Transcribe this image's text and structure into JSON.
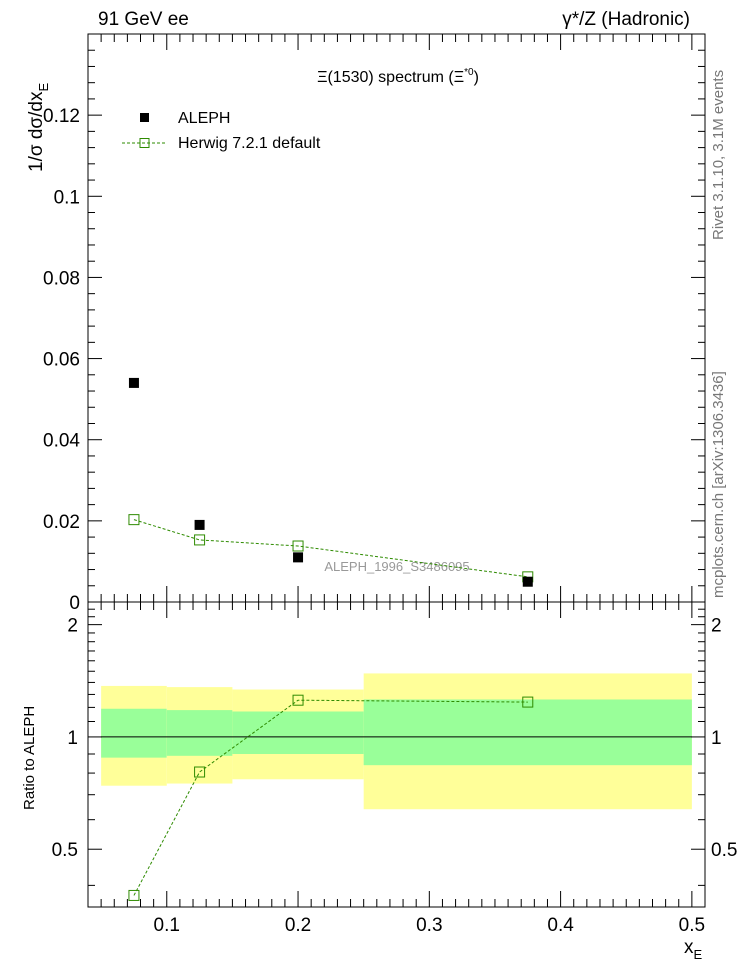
{
  "header": {
    "left": "91 GeV ee",
    "right": "γ*/Z (Hadronic)"
  },
  "side_labels": {
    "rivet": "Rivet 3.1.10,  3.1M events",
    "mcplots": "mcplots.cern.ch [arXiv:1306.3436]"
  },
  "colors": {
    "data_marker": "#000000",
    "mc_line": "#2e8b00",
    "band_inner": "#99ff99",
    "band_outer": "#ffff99"
  },
  "chart_data": [
    {
      "id": "main",
      "type": "scatter",
      "title": "Ξ(1530) spectrum (Ξ*0)",
      "title_main": "Ξ(1530) spectrum (Ξ",
      "title_sup": "*0",
      "title_end": ")",
      "ylabel": "1/σ dσ/dx",
      "ylabel_sub": "E",
      "xlim": [
        0.04,
        0.51
      ],
      "ylim": [
        0,
        0.14
      ],
      "yticks": [
        0,
        0.02,
        0.04,
        0.06,
        0.08,
        0.1,
        0.12
      ],
      "ytick_labels": [
        "0",
        "0.02",
        "0.04",
        "0.06",
        "0.08",
        "0.1",
        "0.12"
      ],
      "watermark": "ALEPH_1996_S3486095",
      "legend": [
        {
          "label": "ALEPH",
          "kind": "data"
        },
        {
          "label": "Herwig 7.2.1 default",
          "kind": "mc"
        }
      ],
      "series": [
        {
          "name": "ALEPH",
          "x": [
            0.075,
            0.125,
            0.2,
            0.375
          ],
          "y": [
            0.054,
            0.019,
            0.011,
            0.005
          ]
        },
        {
          "name": "Herwig 7.2.1 default",
          "x": [
            0.075,
            0.125,
            0.2,
            0.375
          ],
          "y": [
            0.0203,
            0.0153,
            0.0138,
            0.0062
          ]
        }
      ]
    },
    {
      "id": "ratio",
      "type": "scatter",
      "ylabel": "Ratio to ALEPH",
      "xlabel": "x",
      "xlabel_sub": "E",
      "xlim": [
        0.04,
        0.51
      ],
      "ylim": [
        0.35,
        2.3
      ],
      "yticks": [
        0.5,
        1,
        2
      ],
      "ytick_labels": [
        "0.5",
        "1",
        "2"
      ],
      "xticks": [
        0.1,
        0.2,
        0.3,
        0.4,
        0.5
      ],
      "xtick_labels": [
        "0.1",
        "0.2",
        "0.3",
        "0.4",
        "0.5"
      ],
      "bands": [
        {
          "x0": 0.05,
          "x1": 0.1,
          "inner": [
            0.88,
            1.19
          ],
          "outer": [
            0.74,
            1.37
          ]
        },
        {
          "x0": 0.1,
          "x1": 0.15,
          "inner": [
            0.89,
            1.18
          ],
          "outer": [
            0.75,
            1.36
          ]
        },
        {
          "x0": 0.15,
          "x1": 0.25,
          "inner": [
            0.9,
            1.17
          ],
          "outer": [
            0.77,
            1.34
          ]
        },
        {
          "x0": 0.25,
          "x1": 0.5,
          "inner": [
            0.84,
            1.26
          ],
          "outer": [
            0.64,
            1.48
          ]
        }
      ],
      "series": [
        {
          "name": "Herwig 7.2.1 default",
          "x": [
            0.075,
            0.125,
            0.2,
            0.375
          ],
          "y": [
            0.3759,
            0.8053,
            1.2545,
            1.24
          ]
        }
      ]
    }
  ]
}
